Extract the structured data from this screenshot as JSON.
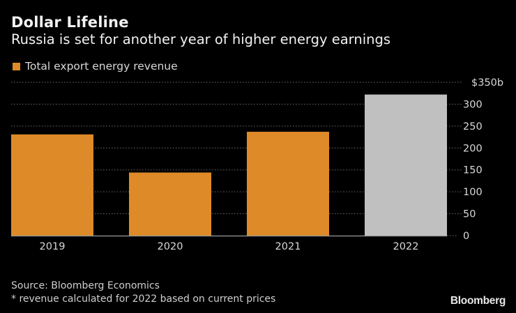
{
  "header": {
    "title": "Dollar Lifeline",
    "subtitle": "Russia is set for another year of higher energy earnings"
  },
  "legend": {
    "items": [
      {
        "label": "Total export energy revenue",
        "color": "#DE8A28"
      }
    ]
  },
  "footer": {
    "source": "Source: Bloomberg Economics",
    "note": "* revenue calculated for 2022 based on current prices"
  },
  "brand": "Bloomberg",
  "chart_data": {
    "type": "bar",
    "title": "Dollar Lifeline",
    "subtitle": "Russia is set for another year of higher energy earnings",
    "xlabel": "",
    "ylabel": "",
    "categories": [
      "2019",
      "2020",
      "2021",
      "2022"
    ],
    "series": [
      {
        "name": "Total export energy revenue",
        "values": [
          231,
          144,
          237,
          322
        ],
        "colors": [
          "#DE8A28",
          "#DE8A28",
          "#DE8A28",
          "#C0C0C0"
        ]
      }
    ],
    "ylim": [
      0,
      350
    ],
    "yticks": [
      0,
      50,
      100,
      150,
      200,
      250,
      300,
      350
    ],
    "ytick_labels": [
      "0",
      "50",
      "100",
      "150",
      "200",
      "250",
      "300",
      "$350b"
    ],
    "y_axis_position": "right",
    "grid": true,
    "grid_style": "dotted",
    "legend_position": "top-left",
    "estimated_note": "2022 value is an estimate (shown in gray)"
  }
}
